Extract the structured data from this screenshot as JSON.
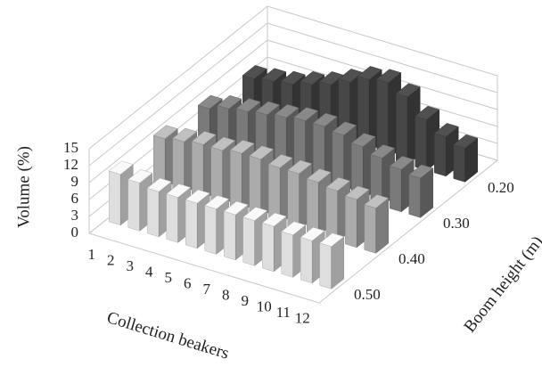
{
  "chart_data": {
    "type": "bar3d",
    "z_label": "Volume (%)",
    "x_label": "Collection beakers",
    "y_label": "Boom height (m)",
    "categories": [
      "1",
      "2",
      "3",
      "4",
      "5",
      "6",
      "7",
      "8",
      "9",
      "10",
      "11",
      "12"
    ],
    "zlim": [
      0,
      15
    ],
    "zticks": [
      0,
      3,
      6,
      9,
      12,
      15
    ],
    "grid": true,
    "series": [
      {
        "name": "0.20",
        "color": "#474747",
        "values": [
          7,
          7.5,
          8,
          9,
          10,
          11.5,
          13,
          13.5,
          12,
          9,
          7,
          6
        ]
      },
      {
        "name": "0.30",
        "color": "#7a7a7a",
        "values": [
          8,
          9,
          9.5,
          10,
          10.5,
          11,
          11,
          10.5,
          9.5,
          8.5,
          7.5,
          7
        ]
      },
      {
        "name": "0.40",
        "color": "#ababab",
        "values": [
          9,
          9.5,
          10,
          10,
          10.5,
          10.5,
          10,
          10,
          9.5,
          9,
          8.5,
          8
        ]
      },
      {
        "name": "0.50",
        "color": "#dedede",
        "values": [
          9,
          8.5,
          8,
          8,
          8,
          8,
          8,
          8,
          8,
          7.5,
          7.5,
          7.5
        ]
      }
    ]
  }
}
